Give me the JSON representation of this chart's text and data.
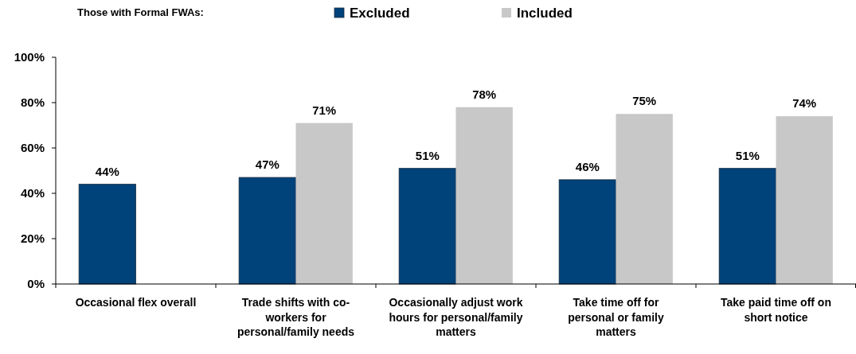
{
  "chart_data": {
    "type": "bar",
    "legend_title": "Those with Formal FWAs:",
    "legend": "top",
    "categories": [
      "Occasional flex overall",
      "Trade shifts with co-workers for personal/family needs",
      "Occasionally adjust work hours for personal/family matters",
      "Take time off for personal or family matters",
      "Take paid time off on short notice"
    ],
    "series": [
      {
        "name": "Excluded",
        "color": "#00427a",
        "values": [
          44,
          47,
          51,
          46,
          51
        ],
        "value_labels": [
          "44%",
          "47%",
          "51%",
          "46%",
          "51%"
        ]
      },
      {
        "name": "Included",
        "color": "#c8c8c8",
        "values": [
          null,
          71,
          78,
          75,
          74
        ],
        "value_labels": [
          null,
          "71%",
          "78%",
          "75%",
          "74%"
        ]
      }
    ],
    "ylim": [
      0,
      100
    ],
    "yticks": [
      {
        "value": 0,
        "label": "0%"
      },
      {
        "value": 20,
        "label": "20%"
      },
      {
        "value": 40,
        "label": "40%"
      },
      {
        "value": 60,
        "label": "60%"
      },
      {
        "value": 80,
        "label": "80%"
      },
      {
        "value": 100,
        "label": "100%"
      }
    ]
  }
}
